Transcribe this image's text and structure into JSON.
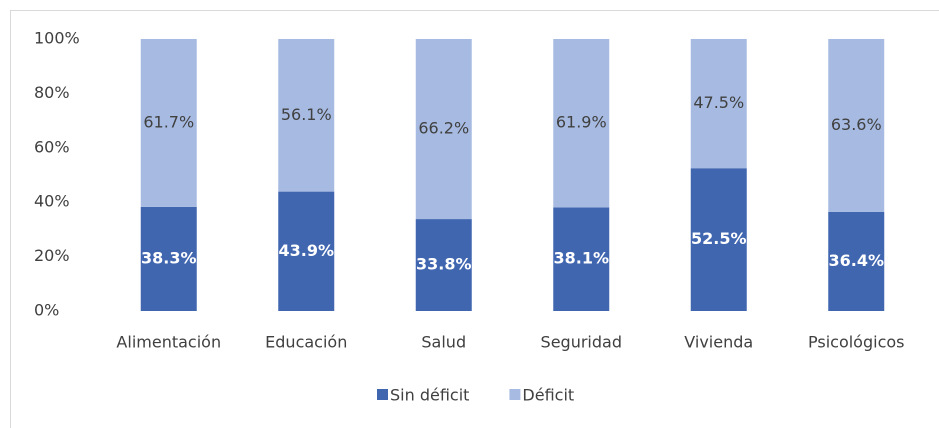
{
  "chart_data": {
    "type": "stacked_bar",
    "categories": [
      "Alimentación",
      "Educación",
      "Salud",
      "Seguridad",
      "Vivienda",
      "Psicológicos"
    ],
    "series": [
      {
        "name": "Sin déficit",
        "color": "#4166b0",
        "values": [
          38.3,
          43.9,
          33.8,
          38.1,
          52.5,
          36.4
        ],
        "value_labels": [
          "38.3%",
          "43.9%",
          "33.8%",
          "38.1%",
          "52.5%",
          "36.4%"
        ]
      },
      {
        "name": "Déficit",
        "color": "#a7bbe2",
        "values": [
          61.7,
          56.1,
          66.2,
          61.9,
          47.5,
          63.6
        ],
        "value_labels": [
          "61.7%",
          "56.1%",
          "66.2%",
          "61.9%",
          "47.5%",
          "63.6%"
        ]
      }
    ],
    "ylim": [
      0,
      100
    ],
    "yticks": [
      {
        "value": 0,
        "label": "0%"
      },
      {
        "value": 20,
        "label": "20%"
      },
      {
        "value": 40,
        "label": "40%"
      },
      {
        "value": 60,
        "label": "60%"
      },
      {
        "value": 80,
        "label": "80%"
      },
      {
        "value": 100,
        "label": "100%"
      }
    ],
    "grid": false,
    "legend": "bottom"
  }
}
